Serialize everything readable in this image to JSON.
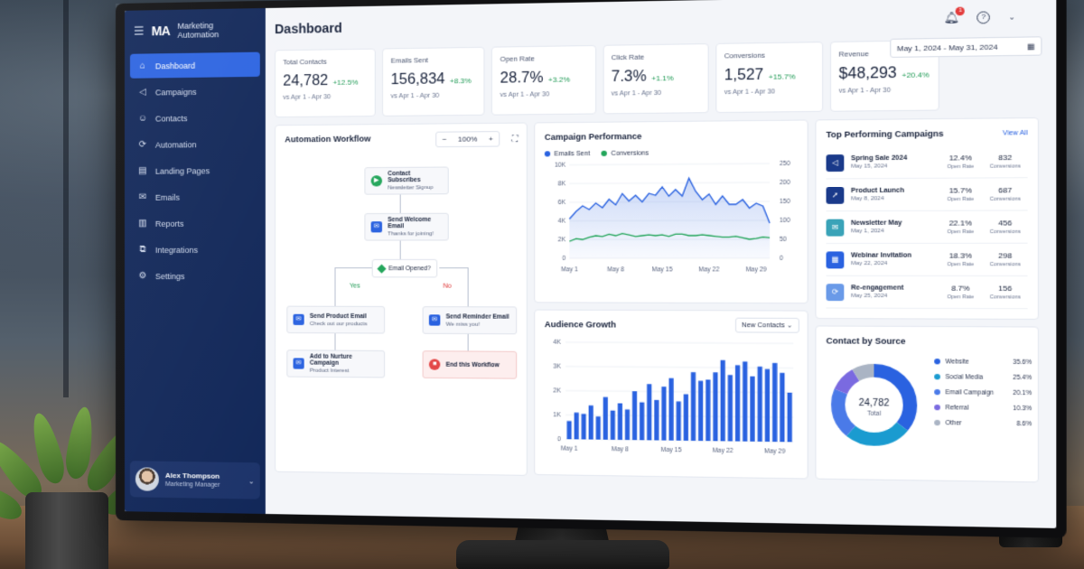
{
  "app": {
    "logo": "MA",
    "name": "Marketing Automation"
  },
  "sidebar": {
    "items": [
      {
        "label": "Dashboard",
        "icon": "home-icon"
      },
      {
        "label": "Campaigns",
        "icon": "megaphone-icon"
      },
      {
        "label": "Contacts",
        "icon": "people-icon"
      },
      {
        "label": "Automation",
        "icon": "gear-sync-icon"
      },
      {
        "label": "Landing Pages",
        "icon": "page-icon"
      },
      {
        "label": "Emails",
        "icon": "mail-icon"
      },
      {
        "label": "Reports",
        "icon": "bar-chart-icon"
      },
      {
        "label": "Integrations",
        "icon": "puzzle-icon"
      },
      {
        "label": "Settings",
        "icon": "gear-icon"
      }
    ],
    "active": "Dashboard",
    "user": {
      "name": "Alex Thompson",
      "role": "Marketing Manager"
    }
  },
  "header": {
    "title": "Dashboard",
    "notification_count": "1"
  },
  "date_range": "May 1, 2024 - May 31, 2024",
  "kpis": [
    {
      "label": "Total Contacts",
      "value": "24,782",
      "delta": "+12.5%",
      "compare": "vs Apr 1 - Apr 30"
    },
    {
      "label": "Emails Sent",
      "value": "156,834",
      "delta": "+8.3%",
      "compare": "vs Apr 1 - Apr 30"
    },
    {
      "label": "Open Rate",
      "value": "28.7%",
      "delta": "+3.2%",
      "compare": "vs Apr 1 - Apr 30"
    },
    {
      "label": "Click Rate",
      "value": "7.3%",
      "delta": "+1.1%",
      "compare": "vs Apr 1 - Apr 30"
    },
    {
      "label": "Conversions",
      "value": "1,527",
      "delta": "+15.7%",
      "compare": "vs Apr 1 - Apr 30"
    },
    {
      "label": "Revenue",
      "value": "$48,293",
      "delta": "+20.4%",
      "compare": "vs Apr 1 - Apr 30"
    }
  ],
  "workflow": {
    "title": "Automation Workflow",
    "zoom": "100%",
    "start": {
      "title": "Contact Subscribes",
      "sub": "Newsletter Signup"
    },
    "welcome": {
      "title": "Send Welcome Email",
      "sub": "Thanks for joining!"
    },
    "decision": "Email Opened?",
    "yes": "Yes",
    "no": "No",
    "product": {
      "title": "Send Product Email",
      "sub": "Check out our products"
    },
    "reminder": {
      "title": "Send Reminder Email",
      "sub": "We miss you!"
    },
    "nurture": {
      "title": "Add to Nurture Campaign",
      "sub": "Product Interest"
    },
    "end": {
      "title": "End this Workflow"
    }
  },
  "chart_data": [
    {
      "type": "line",
      "title": "Campaign Performance",
      "x": [
        "May 1",
        "May 2",
        "May 3",
        "May 4",
        "May 5",
        "May 6",
        "May 7",
        "May 8",
        "May 9",
        "May 10",
        "May 11",
        "May 12",
        "May 13",
        "May 14",
        "May 15",
        "May 16",
        "May 17",
        "May 18",
        "May 19",
        "May 20",
        "May 21",
        "May 22",
        "May 23",
        "May 24",
        "May 25",
        "May 26",
        "May 27",
        "May 28",
        "May 29",
        "May 30",
        "May 31"
      ],
      "x_ticks": [
        "May 1",
        "May 8",
        "May 15",
        "May 22",
        "May 29"
      ],
      "series": [
        {
          "name": "Emails Sent",
          "axis": "left",
          "color": "#2a62e0",
          "values": [
            4200,
            5000,
            5600,
            5200,
            5900,
            5400,
            6300,
            5700,
            6900,
            6100,
            6700,
            6000,
            6900,
            6700,
            7600,
            6600,
            7300,
            6600,
            8500,
            7100,
            6200,
            6800,
            5700,
            6600,
            5700,
            5700,
            6200,
            5300,
            5800,
            5500,
            3700
          ]
        },
        {
          "name": "Conversions",
          "axis": "right",
          "color": "#22a55a",
          "values": [
            45,
            52,
            50,
            56,
            60,
            58,
            64,
            60,
            66,
            62,
            58,
            60,
            62,
            60,
            62,
            58,
            64,
            64,
            60,
            60,
            62,
            60,
            58,
            56,
            56,
            58,
            54,
            50,
            52,
            56,
            54
          ]
        }
      ],
      "y_left": {
        "ticks": [
          "0",
          "2K",
          "4K",
          "6K",
          "8K",
          "10K"
        ],
        "range": [
          0,
          10000
        ]
      },
      "y_right": {
        "ticks": [
          "0",
          "50",
          "100",
          "150",
          "200",
          "250"
        ],
        "range": [
          0,
          250
        ]
      },
      "legend": "top-left",
      "grid": true
    },
    {
      "type": "bar",
      "title": "Audience Growth",
      "selector": "New Contacts",
      "categories": [
        "May 1",
        "May 2",
        "May 3",
        "May 4",
        "May 5",
        "May 6",
        "May 7",
        "May 8",
        "May 9",
        "May 10",
        "May 11",
        "May 12",
        "May 13",
        "May 14",
        "May 15",
        "May 16",
        "May 17",
        "May 18",
        "May 19",
        "May 20",
        "May 21",
        "May 22",
        "May 23",
        "May 24",
        "May 25",
        "May 26",
        "May 27",
        "May 28",
        "May 29",
        "May 30",
        "May 31"
      ],
      "x_ticks": [
        "May 1",
        "May 8",
        "May 15",
        "May 22",
        "May 29"
      ],
      "values": [
        750,
        1100,
        1050,
        1400,
        950,
        1750,
        1200,
        1500,
        1250,
        2000,
        1550,
        2300,
        1650,
        2200,
        2550,
        1600,
        1900,
        2800,
        2450,
        2500,
        2800,
        3300,
        2700,
        3100,
        3250,
        2650,
        3050,
        2950,
        3200,
        2800,
        2000
      ],
      "color": "#2a62e0",
      "y_ticks": [
        "0",
        "1K",
        "2K",
        "3K",
        "4K"
      ],
      "ylim": [
        0,
        4000
      ],
      "grid": true
    },
    {
      "type": "pie",
      "title": "Contact by Source",
      "center_value": "24,782",
      "center_label": "Total",
      "slices": [
        {
          "label": "Website",
          "value": 35.6,
          "pct": "35.6%",
          "color": "#2a62e0"
        },
        {
          "label": "Social Media",
          "value": 25.4,
          "pct": "25.4%",
          "color": "#1a9bd0"
        },
        {
          "label": "Email Campaign",
          "value": 20.1,
          "pct": "20.1%",
          "color": "#4a7ae8"
        },
        {
          "label": "Referral",
          "value": 10.3,
          "pct": "10.3%",
          "color": "#7a6ae0"
        },
        {
          "label": "Other",
          "value": 8.6,
          "pct": "8.6%",
          "color": "#aab4c4"
        }
      ]
    }
  ],
  "top_campaigns": {
    "title": "Top Performing Campaigns",
    "view_all": "View All",
    "open_label": "Open Rate",
    "conv_label": "Conversions",
    "rows": [
      {
        "name": "Spring Sale 2024",
        "date": "May 15, 2024",
        "open": "12.4%",
        "conv": "832",
        "icon": "megaphone-icon",
        "color": "#1a3a8a"
      },
      {
        "name": "Product Launch",
        "date": "May 8, 2024",
        "open": "15.7%",
        "conv": "687",
        "icon": "rocket-icon",
        "color": "#1a3a8a"
      },
      {
        "name": "Newsletter May",
        "date": "May 1, 2024",
        "open": "22.1%",
        "conv": "456",
        "icon": "mail-icon",
        "color": "#3aa3b8"
      },
      {
        "name": "Webinar Invitation",
        "date": "May 22, 2024",
        "open": "18.3%",
        "conv": "298",
        "icon": "calendar-icon",
        "color": "#2a62e0"
      },
      {
        "name": "Re-engagement",
        "date": "May 25, 2024",
        "open": "8.7%",
        "conv": "156",
        "icon": "refresh-icon",
        "color": "#6a9ae8"
      }
    ]
  }
}
